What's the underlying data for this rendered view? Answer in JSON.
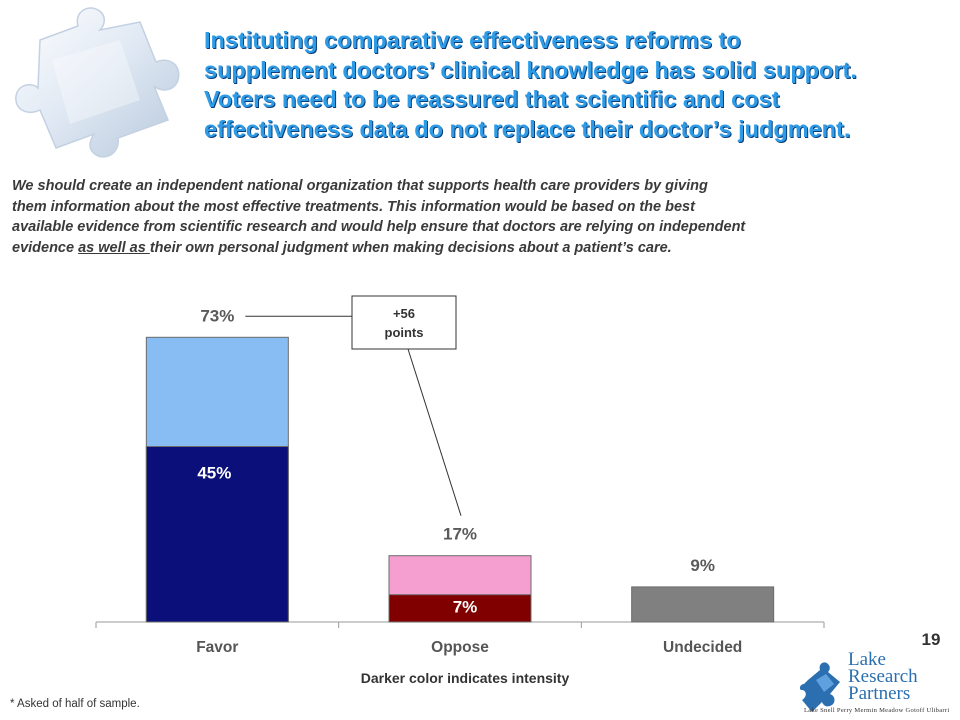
{
  "headline": [
    "Instituting comparative effectiveness reforms to",
    "supplement doctors’ clinical knowledge has solid support.",
    "Voters need to be reassured that scientific and cost",
    "effectiveness data do not replace their doctor’s judgment."
  ],
  "question": {
    "line1": "We should create an independent national organization that supports health care providers by giving",
    "line2": "them information about the most effective treatments.  This information would be based on the best",
    "line3": "available evidence from scientific research and would help ensure that doctors are relying on independent",
    "line4_before": "evidence ",
    "line4_underlined": "as well as ",
    "line4_after": "their own personal judgment when making decisions about a patient’s care."
  },
  "chart_data": {
    "type": "bar",
    "categories": [
      "Favor",
      "Oppose",
      "Undecided"
    ],
    "totals": [
      73,
      17,
      9
    ],
    "total_labels": [
      "73%",
      "17%",
      "9%"
    ],
    "intense": [
      45,
      7,
      null
    ],
    "intense_labels": [
      "45%",
      "7%",
      ""
    ],
    "ylim": [
      0,
      80
    ],
    "colors": {
      "Favor": {
        "total": "#87bdf3",
        "intense": "#0a0f7a"
      },
      "Oppose": {
        "total": "#f59fd0",
        "intense": "#800000"
      },
      "Undecided": {
        "total": "#808080",
        "intense": null
      }
    },
    "callout": {
      "line1": "+56",
      "line2": "points",
      "from": "Favor",
      "to": "Oppose"
    },
    "note": "Darker color indicates intensity"
  },
  "page_number": "19",
  "footnote": "* Asked of half of sample.",
  "logo": {
    "lines": [
      "Lake",
      "Research",
      "Partners"
    ],
    "partners": "Lake   Snell   Perry   Mermin   Meadow   Gotoff   Ulibarri",
    "color": "#2b6fb0"
  },
  "icons": [
    "puzzle-piece-icon",
    "logo-puzzle-icon"
  ]
}
